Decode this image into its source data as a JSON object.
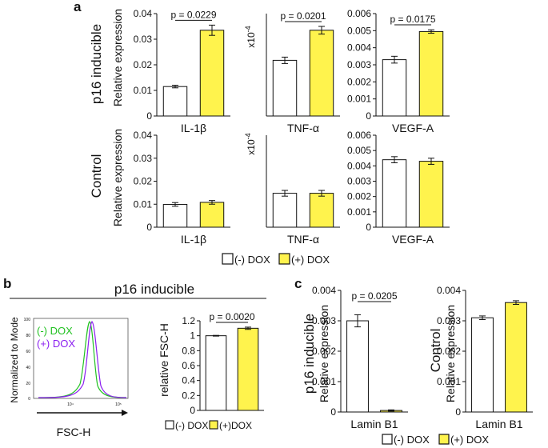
{
  "colors": {
    "minus": "#ffffff",
    "plus": "#fff34d",
    "stroke": "#111111",
    "green": "#22c222",
    "purple": "#8b1ff0"
  },
  "panel_a": {
    "label": "a",
    "row_labels": {
      "top": "p16 inducible",
      "bottom": "Control"
    },
    "ylabel": "Relative expression",
    "sci_label": "x10",
    "sci_exp": "-4",
    "legend": {
      "minus": "(-) DOX",
      "plus": "(+) DOX"
    }
  },
  "panel_b": {
    "label": "b",
    "header": "p16 inducible",
    "flow": {
      "xlabel": "FSC-H",
      "ylabel": "Normalized to Mode",
      "minus_label": "(-) DOX",
      "plus_label": "(+) DOX",
      "y_ticks": [
        "100",
        "80",
        "60",
        "40",
        "20",
        "0"
      ],
      "x_ticks": [
        "10⁴",
        "10⁵"
      ]
    },
    "ylabel": "relative FSC-H",
    "legend": {
      "minus": "(-) DOX",
      "plus": "(+)DOX"
    }
  },
  "panel_c": {
    "label": "c",
    "row_labels": {
      "left": "p16 inducible",
      "right": "Control"
    },
    "ylabel": "Relative expression",
    "legend": {
      "minus": "(-) DOX",
      "plus": "(+) DOX"
    }
  },
  "chart_data": [
    {
      "id": "a-il1b-p16",
      "type": "bar",
      "categories": [
        "(-) DOX",
        "(+) DOX"
      ],
      "values": [
        0.0115,
        0.0335
      ],
      "errors": [
        0.0005,
        0.002
      ],
      "ylim": [
        0,
        0.04
      ],
      "yticks": [
        0,
        0.01,
        0.02,
        0.03,
        0.04
      ],
      "tick_labels": [
        "0",
        "0.01",
        "0.02",
        "0.03",
        "0.04"
      ],
      "xlabel": "IL-1β",
      "pvalue": "p = 0.0229"
    },
    {
      "id": "a-tnf-p16",
      "type": "bar",
      "categories": [
        "(-) DOX",
        "(+) DOX"
      ],
      "values": [
        4.35,
        6.7
      ],
      "errors": [
        0.25,
        0.3
      ],
      "ylim": [
        0,
        8
      ],
      "yticks": [],
      "tick_labels": [],
      "xlabel": "TNF-α",
      "pvalue": "p = 0.0201"
    },
    {
      "id": "a-vegfa-p16",
      "type": "bar",
      "categories": [
        "(-) DOX",
        "(+) DOX"
      ],
      "values": [
        0.0033,
        0.00495
      ],
      "errors": [
        0.0002,
        0.0001
      ],
      "ylim": [
        0,
        0.006
      ],
      "yticks": [
        0,
        0.001,
        0.002,
        0.003,
        0.004,
        0.005,
        0.006
      ],
      "tick_labels": [
        "0",
        "0.001",
        "0.002",
        "0.003",
        "0.004",
        "0.005",
        "0.006"
      ],
      "xlabel": "VEGF-A",
      "pvalue": "p = 0.0175"
    },
    {
      "id": "a-il1b-ctrl",
      "type": "bar",
      "categories": [
        "(-) DOX",
        "(+) DOX"
      ],
      "values": [
        0.0099,
        0.0108
      ],
      "errors": [
        0.0008,
        0.0008
      ],
      "ylim": [
        0,
        0.04
      ],
      "yticks": [
        0,
        0.01,
        0.02,
        0.03,
        0.04
      ],
      "tick_labels": [
        "0",
        "0.01",
        "0.02",
        "0.03",
        "0.04"
      ],
      "xlabel": "IL-1β",
      "pvalue": ""
    },
    {
      "id": "a-tnf-ctrl",
      "type": "bar",
      "categories": [
        "(-) DOX",
        "(+) DOX"
      ],
      "values": [
        2.95,
        2.95
      ],
      "errors": [
        0.25,
        0.25
      ],
      "ylim": [
        0,
        8
      ],
      "yticks": [],
      "tick_labels": [],
      "xlabel": "TNF-α",
      "pvalue": ""
    },
    {
      "id": "a-vegfa-ctrl",
      "type": "bar",
      "categories": [
        "(-) DOX",
        "(+) DOX"
      ],
      "values": [
        0.0044,
        0.0043
      ],
      "errors": [
        0.0002,
        0.0002
      ],
      "ylim": [
        0,
        0.006
      ],
      "yticks": [
        0,
        0.001,
        0.002,
        0.003,
        0.004,
        0.005,
        0.006
      ],
      "tick_labels": [
        "0",
        "0.001",
        "0.002",
        "0.003",
        "0.004",
        "0.005",
        "0.006"
      ],
      "xlabel": "VEGF-A",
      "pvalue": ""
    },
    {
      "id": "b-fsc",
      "type": "bar",
      "categories": [
        "(-) DOX",
        "(+)DOX"
      ],
      "values": [
        1.0,
        1.1
      ],
      "errors": [
        0.005,
        0.015
      ],
      "ylim": [
        0,
        1.2
      ],
      "yticks": [
        0,
        0.2,
        0.4,
        0.6,
        0.8,
        1,
        1.2
      ],
      "tick_labels": [
        "0",
        "0.2",
        "0.4",
        "0.6",
        "0.8",
        "1",
        "1.2"
      ],
      "xlabel": "",
      "pvalue": "p = 0.0020"
    },
    {
      "id": "c-lamin-p16",
      "type": "bar",
      "categories": [
        "(-) DOX",
        "(+) DOX"
      ],
      "values": [
        0.003,
        5e-05
      ],
      "errors": [
        0.0002,
        2e-05
      ],
      "ylim": [
        0,
        0.004
      ],
      "yticks": [
        0,
        0.001,
        0.002,
        0.003,
        0.004
      ],
      "tick_labels": [
        "0",
        "0.001",
        "0.002",
        "0.003",
        "0.004"
      ],
      "xlabel": "Lamin B1",
      "pvalue": "p = 0.0205"
    },
    {
      "id": "c-lamin-ctrl",
      "type": "bar",
      "categories": [
        "(-) DOX",
        "(+) DOX"
      ],
      "values": [
        0.0031,
        0.0036
      ],
      "errors": [
        6e-05,
        6e-05
      ],
      "ylim": [
        0,
        0.004
      ],
      "yticks": [
        0,
        0.001,
        0.002,
        0.003,
        0.004
      ],
      "tick_labels": [
        "0",
        "0.001",
        "0.002",
        "0.003",
        "0.004"
      ],
      "xlabel": "Lamin B1",
      "pvalue": ""
    }
  ]
}
